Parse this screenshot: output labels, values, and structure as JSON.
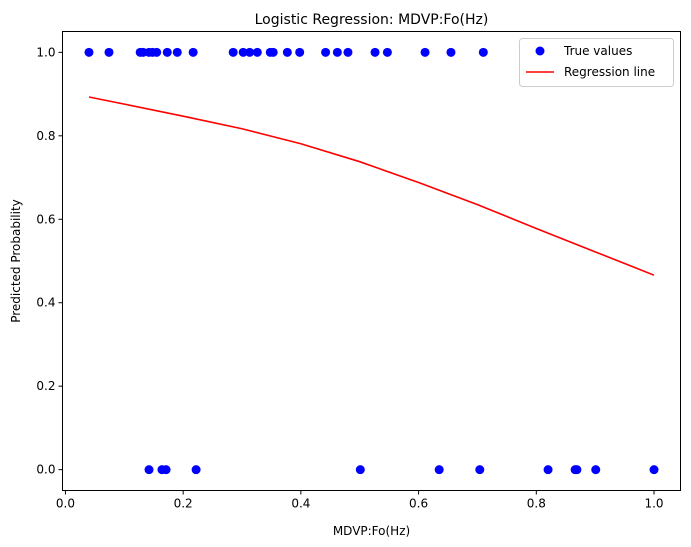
{
  "chart_data": {
    "type": "scatter",
    "title": "Logistic Regression: MDVP:Fo(Hz)",
    "xlabel": "MDVP:Fo(Hz)",
    "ylabel": "Predicted Probability",
    "xlim": [
      -0.005,
      1.045
    ],
    "ylim": [
      -0.05,
      1.05
    ],
    "xticks": [
      0.0,
      0.2,
      0.4,
      0.6,
      0.8,
      1.0
    ],
    "xtick_labels": [
      "0.0",
      "0.2",
      "0.4",
      "0.6",
      "0.8",
      "1.0"
    ],
    "yticks": [
      0.0,
      0.2,
      0.4,
      0.6,
      0.8,
      1.0
    ],
    "ytick_labels": [
      "0.0",
      "0.2",
      "0.4",
      "0.6",
      "0.8",
      "1.0"
    ],
    "grid": false,
    "legend_position": "top-right",
    "series": [
      {
        "name": "True values",
        "kind": "scatter",
        "color": "#0000ff",
        "x": [
          0.04,
          0.074,
          0.127,
          0.132,
          0.142,
          0.148,
          0.155,
          0.173,
          0.19,
          0.217,
          0.285,
          0.302,
          0.313,
          0.326,
          0.348,
          0.353,
          0.377,
          0.398,
          0.442,
          0.462,
          0.48,
          0.526,
          0.547,
          0.611,
          0.655,
          0.71,
          0.142,
          0.164,
          0.171,
          0.222,
          0.501,
          0.635,
          0.704,
          0.82,
          0.866,
          0.869,
          0.901,
          1.0
        ],
        "y": [
          1,
          1,
          1,
          1,
          1,
          1,
          1,
          1,
          1,
          1,
          1,
          1,
          1,
          1,
          1,
          1,
          1,
          1,
          1,
          1,
          1,
          1,
          1,
          1,
          1,
          1,
          0,
          0,
          0,
          0,
          0,
          0,
          0,
          0,
          0,
          0,
          0,
          0
        ]
      },
      {
        "name": "Regression line",
        "kind": "line",
        "color": "#ff0000",
        "x": [
          0.04,
          0.1,
          0.2,
          0.3,
          0.4,
          0.5,
          0.6,
          0.7,
          0.8,
          0.9,
          1.0
        ],
        "y": [
          0.893,
          0.876,
          0.847,
          0.817,
          0.781,
          0.738,
          0.688,
          0.635,
          0.578,
          0.522,
          0.466
        ]
      }
    ]
  }
}
